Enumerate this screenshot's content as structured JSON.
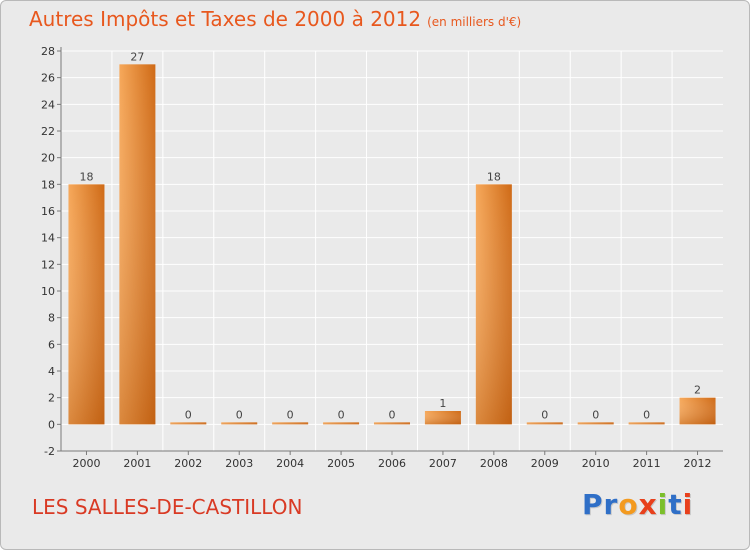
{
  "title": {
    "main": "Autres Impôts et Taxes de 2000 à 2012",
    "unit": "(en milliers d'€)"
  },
  "commune": "LES SALLES-DE-CASTILLON",
  "logo": {
    "letters": [
      "P",
      "r",
      "o",
      "x",
      "i",
      "t",
      "i"
    ],
    "colors": [
      "#2f6fc7",
      "#2f6fc7",
      "#f39a1f",
      "#e8401c",
      "#7bbf2a",
      "#2f6fc7",
      "#e8401c"
    ]
  },
  "colors": {
    "title": "#e8581e",
    "commune": "#d93a24",
    "bar_light": "#f6a85a",
    "bar_dark": "#cf6a16",
    "grid": "#ffffff",
    "axis": "#7a7a7a"
  },
  "chart_data": {
    "type": "bar",
    "categories": [
      "2000",
      "2001",
      "2002",
      "2003",
      "2004",
      "2005",
      "2006",
      "2007",
      "2008",
      "2009",
      "2010",
      "2011",
      "2012"
    ],
    "values": [
      18,
      27,
      0,
      0,
      0,
      0,
      0,
      1,
      18,
      0,
      0,
      0,
      2
    ],
    "data_labels": [
      "18",
      "27",
      "0",
      "0",
      "0",
      "0",
      "0",
      "1",
      "18",
      "0",
      "0",
      "0",
      "2"
    ],
    "ylim": [
      -2,
      28
    ],
    "yticks": [
      -2,
      0,
      2,
      4,
      6,
      8,
      10,
      12,
      14,
      16,
      18,
      20,
      22,
      24,
      26,
      28
    ],
    "grid": true,
    "xlabel": "",
    "ylabel": ""
  }
}
